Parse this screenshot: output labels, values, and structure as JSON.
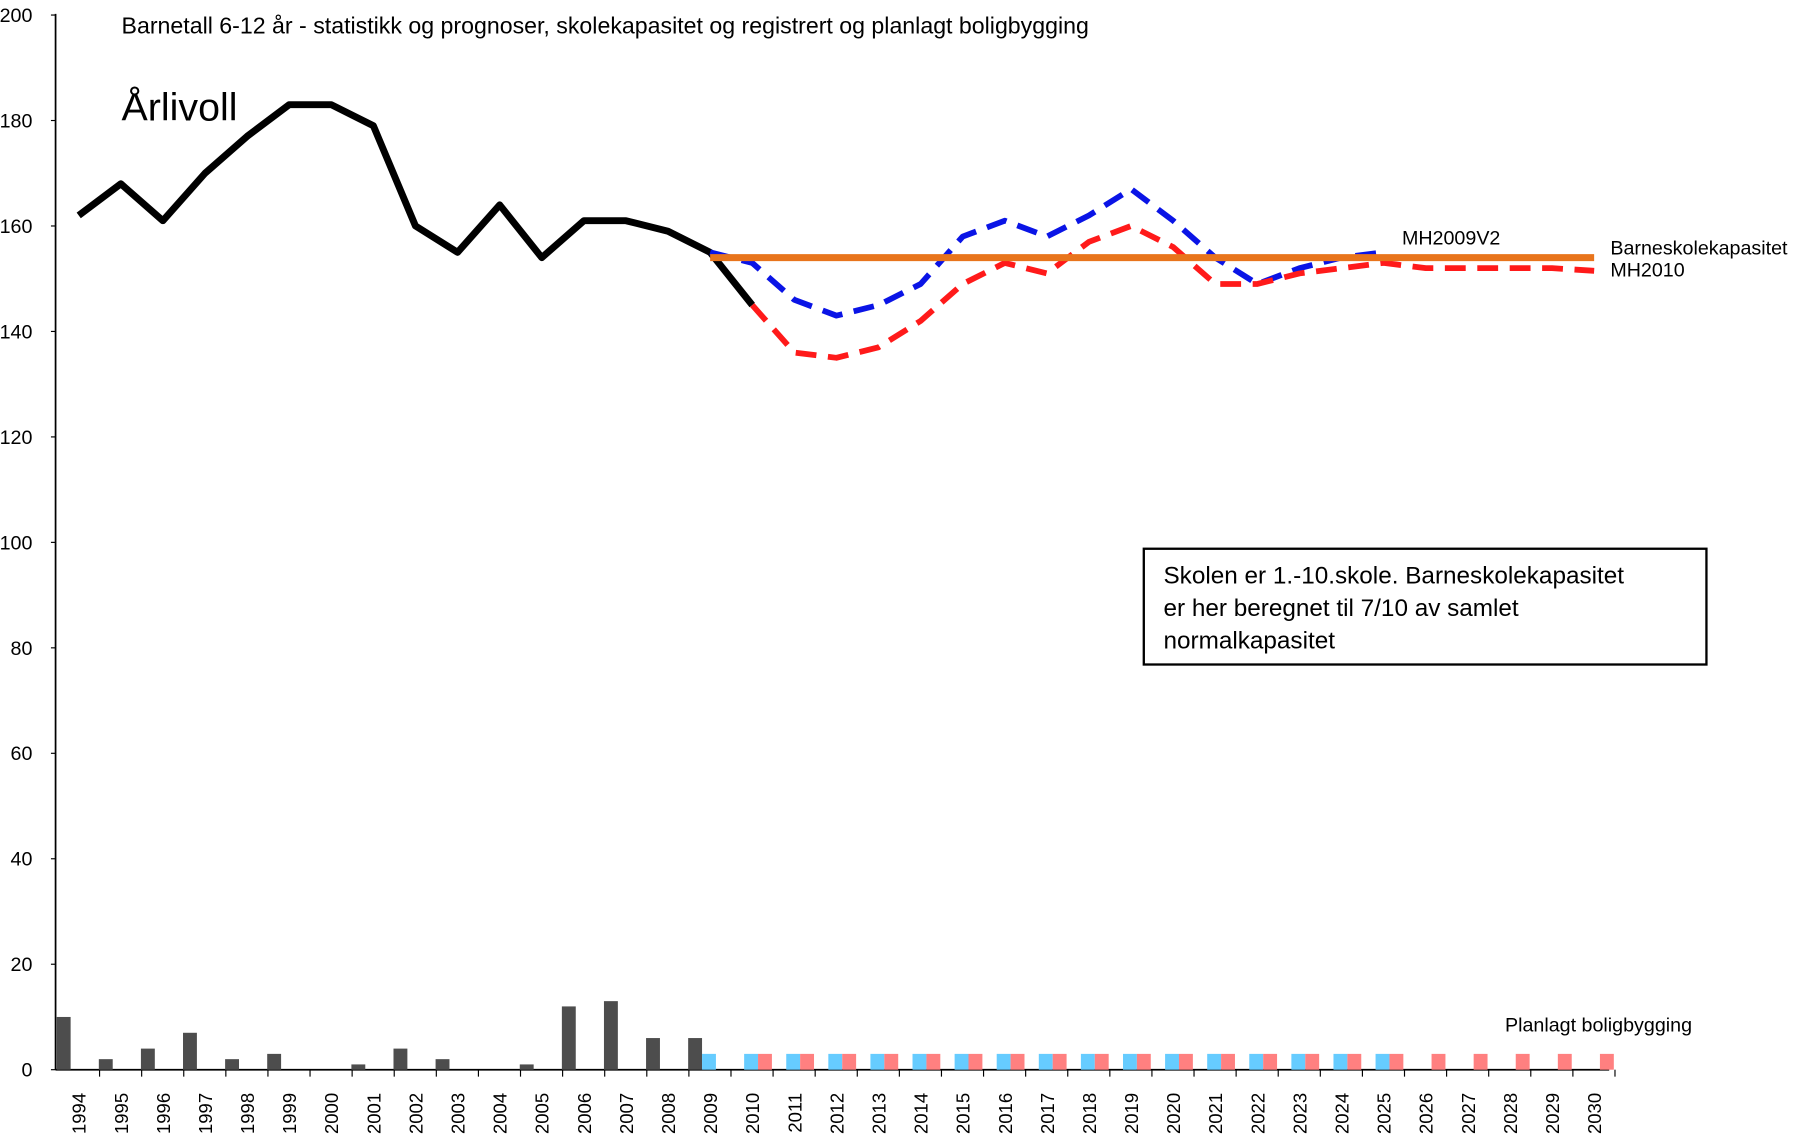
{
  "chart_data": {
    "type": "combo",
    "title": "Barnetall 6-12 år - statistikk og prognoser, skolekapasitet og registrert og planlagt boligbygging",
    "subtitle": "Årlivoll",
    "note": [
      "Skolen er 1.-10.skole. Barneskolekapasitet",
      "er her beregnet til 7/10 av samlet",
      "normalkapasitet"
    ],
    "categories": [
      "1994",
      "1995",
      "1996",
      "1997",
      "1998",
      "1999",
      "2000",
      "2001",
      "2002",
      "2003",
      "2004",
      "2005",
      "2006",
      "2007",
      "2008",
      "2009",
      "2010",
      "2011",
      "2012",
      "2013",
      "2014",
      "2015",
      "2016",
      "2017",
      "2018",
      "2019",
      "2020",
      "2021",
      "2022",
      "2023",
      "2024",
      "2025",
      "2026",
      "2027",
      "2028",
      "2029",
      "2030"
    ],
    "ylim": [
      0,
      200
    ],
    "yticks": [
      0,
      20,
      40,
      60,
      80,
      100,
      120,
      140,
      160,
      180,
      200
    ],
    "grid": false,
    "series": [
      {
        "type": "bar",
        "color": "#4d4d4d",
        "values": [
          10,
          2,
          4,
          7,
          2,
          3,
          0,
          1,
          4,
          2,
          0,
          1,
          12,
          13,
          6,
          6,
          null,
          null,
          null,
          null,
          null,
          null,
          null,
          null,
          null,
          null,
          null,
          null,
          null,
          null,
          null,
          null,
          null,
          null,
          null,
          null,
          null
        ]
      },
      {
        "type": "bar",
        "color": "#66ccff",
        "values": [
          null,
          null,
          null,
          null,
          null,
          null,
          null,
          null,
          null,
          null,
          null,
          null,
          null,
          null,
          null,
          3,
          3,
          3,
          3,
          3,
          3,
          3,
          3,
          3,
          3,
          3,
          3,
          3,
          3,
          3,
          3,
          3,
          null,
          null,
          null,
          null,
          null
        ]
      },
      {
        "type": "bar",
        "name": "Planlagt boligbygging",
        "color": "#ff8080",
        "values": [
          null,
          null,
          null,
          null,
          null,
          null,
          null,
          null,
          null,
          null,
          null,
          null,
          null,
          null,
          null,
          null,
          3,
          3,
          3,
          3,
          3,
          3,
          3,
          3,
          3,
          3,
          3,
          3,
          3,
          3,
          3,
          3,
          3,
          3,
          3,
          3,
          3
        ]
      },
      {
        "type": "line",
        "color": "#000000",
        "dashed": false,
        "values": [
          162,
          168,
          161,
          170,
          177,
          183,
          183,
          179,
          160,
          155,
          164,
          154,
          161,
          161,
          159,
          155,
          145,
          null,
          null,
          null,
          null,
          null,
          null,
          null,
          null,
          null,
          null,
          null,
          null,
          null,
          null,
          null,
          null,
          null,
          null,
          null,
          null
        ]
      },
      {
        "type": "line",
        "name": "MH2009V2",
        "color": "#0a14e6",
        "dashed": true,
        "values": [
          null,
          null,
          null,
          null,
          null,
          null,
          null,
          null,
          null,
          null,
          null,
          null,
          null,
          null,
          null,
          155,
          153,
          146,
          143,
          145,
          149,
          158,
          161,
          158,
          162,
          167,
          161,
          154,
          149,
          152,
          154,
          155,
          null,
          null,
          null,
          null,
          null
        ]
      },
      {
        "type": "line",
        "name": "MH2010",
        "color": "#ff1a1a",
        "dashed": true,
        "values": [
          null,
          null,
          null,
          null,
          null,
          null,
          null,
          null,
          null,
          null,
          null,
          null,
          null,
          null,
          null,
          null,
          145,
          136,
          135,
          137,
          142,
          149,
          153,
          151,
          157,
          160,
          156,
          149,
          149,
          151,
          152,
          153,
          152,
          152,
          152,
          152,
          151.5
        ]
      },
      {
        "type": "line",
        "name": "Barneskolekapasitet",
        "color": "#e8741c",
        "dashed": false,
        "values": [
          null,
          null,
          null,
          null,
          null,
          null,
          null,
          null,
          null,
          null,
          null,
          null,
          null,
          null,
          null,
          154,
          154,
          154,
          154,
          154,
          154,
          154,
          154,
          154,
          154,
          154,
          154,
          154,
          154,
          154,
          154,
          154,
          154,
          154,
          154,
          154,
          154
        ]
      }
    ]
  }
}
